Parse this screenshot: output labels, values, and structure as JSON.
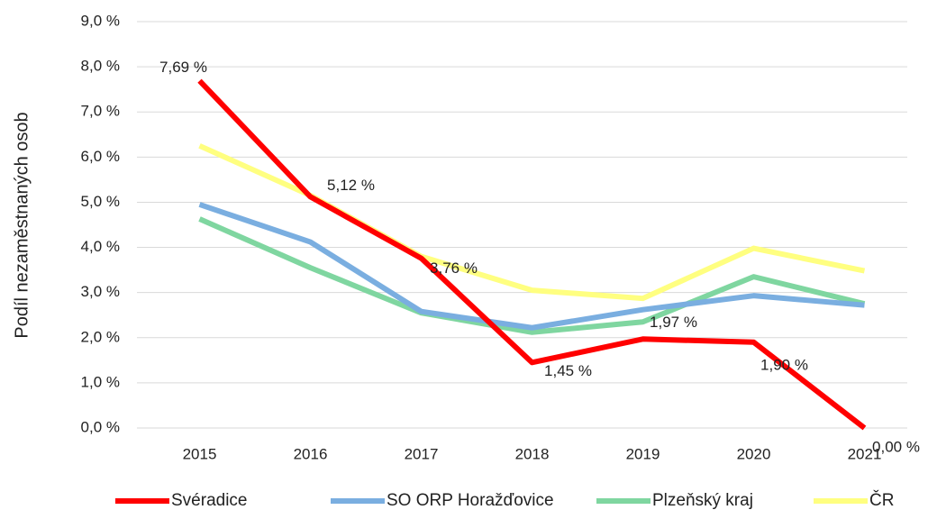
{
  "chart_data": {
    "type": "line",
    "y_label": "Podíl nezaměstnaných osob",
    "categories": [
      "2015",
      "2016",
      "2017",
      "2018",
      "2019",
      "2020",
      "2021"
    ],
    "series": [
      {
        "name": "Svéradice",
        "color": "#ff0000",
        "values": [
          7.69,
          5.12,
          3.76,
          1.45,
          1.97,
          1.9,
          0.0
        ],
        "value_labels": [
          "7,69 %",
          "5,12 %",
          "3,76 %",
          "1,45 %",
          "1,97 %",
          "1,90 %",
          "0,00 %"
        ]
      },
      {
        "name": "SO ORP Horažďovice",
        "color": "#7aaee0",
        "values": [
          4.95,
          4.12,
          2.58,
          2.22,
          2.62,
          2.93,
          2.72
        ]
      },
      {
        "name": "Plzeňský kraj",
        "color": "#7fd6a0",
        "values": [
          4.63,
          3.55,
          2.55,
          2.12,
          2.35,
          3.35,
          2.75
        ]
      },
      {
        "name": "ČR",
        "color": "#ffff80",
        "values": [
          6.25,
          5.15,
          3.8,
          3.05,
          2.87,
          3.98,
          3.48
        ]
      }
    ],
    "ylim": [
      0,
      9
    ],
    "yticks": [
      {
        "value": 0,
        "label": "0,0 %"
      },
      {
        "value": 1,
        "label": "1,0 %"
      },
      {
        "value": 2,
        "label": "2,0 %"
      },
      {
        "value": 3,
        "label": "3,0 %"
      },
      {
        "value": 4,
        "label": "4,0 %"
      },
      {
        "value": 5,
        "label": "5,0 %"
      },
      {
        "value": 6,
        "label": "6,0 %"
      },
      {
        "value": 7,
        "label": "7,0 %"
      },
      {
        "value": 8,
        "label": "8,0 %"
      },
      {
        "value": 9,
        "label": "9,0 %"
      }
    ],
    "grid": true
  }
}
